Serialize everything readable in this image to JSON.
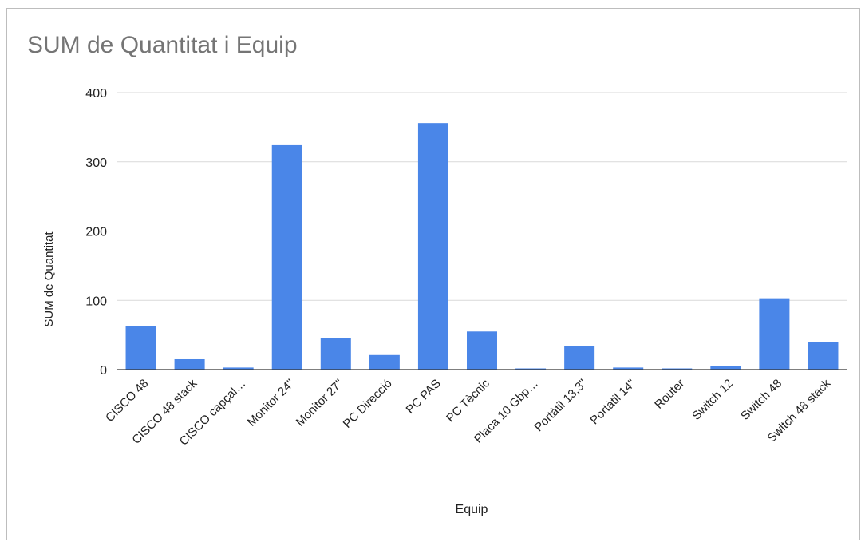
{
  "chart_data": {
    "type": "bar",
    "title": "SUM de Quantitat i Equip",
    "xlabel": "Equip",
    "ylabel": "SUM de Quantitat",
    "ylim": [
      0,
      400
    ],
    "yticks": [
      0,
      100,
      200,
      300,
      400
    ],
    "grid": true,
    "legend": "none",
    "colors": {
      "bar": "#4a86e8",
      "gridline": "#d9d9d9",
      "axis": "#333333",
      "tick_text": "#222222",
      "title": "#757575"
    },
    "categories": [
      "CISCO 48",
      "CISCO 48 stack",
      "CISCO capçal…",
      "Monitor 24\"",
      "Monitor 27\"",
      "PC Direcció",
      "PC PAS",
      "PC Tècnic",
      "Placa 10 Gbp…",
      "Portàtil 13,3\"",
      "Portàtil 14\"",
      "Router",
      "Switch 12",
      "Switch 48",
      "Switch 48 stack"
    ],
    "series": [
      {
        "values": [
          63,
          15,
          3,
          324,
          46,
          21,
          356,
          55,
          1,
          34,
          3,
          1,
          5,
          103,
          40
        ]
      }
    ]
  }
}
